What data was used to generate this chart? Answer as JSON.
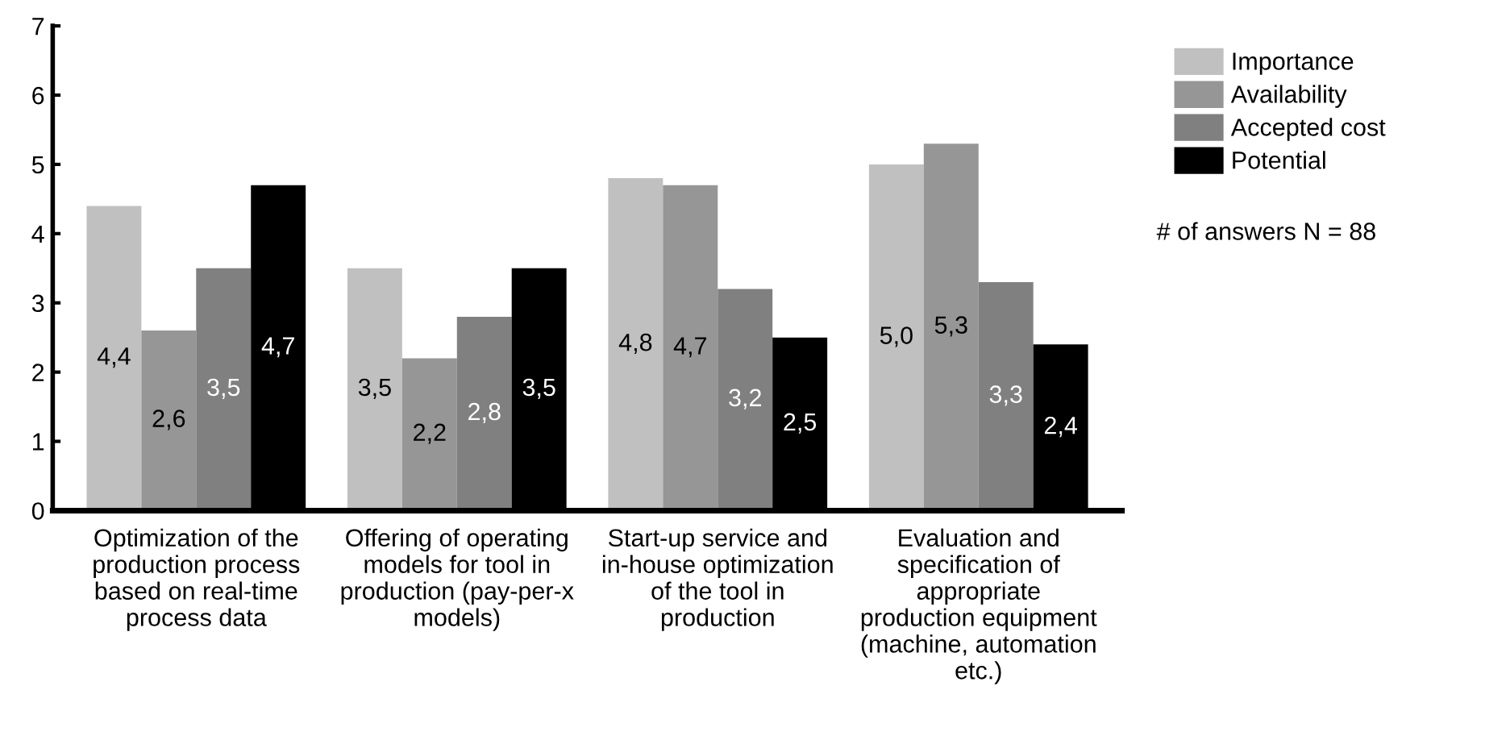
{
  "chart_data": {
    "type": "bar",
    "categories": [
      "Optimization of the\nproduction process\nbased on real-time\nprocess data",
      "Offering of operating\nmodels for tool in\nproduction (pay-per-x\nmodels)",
      "Start-up service and\nin-house optimization\nof the tool in\nproduction",
      "Evaluation and\nspecification of\nappropriate\nproduction equipment\n(machine, automation\netc.)"
    ],
    "series": [
      {
        "name": "Importance",
        "color": "#c0c0c0",
        "values": [
          4.4,
          3.5,
          4.8,
          5.0
        ],
        "value_labels": [
          "4,4",
          "3,5",
          "4,8",
          "5,0"
        ]
      },
      {
        "name": "Availability",
        "color": "#969696",
        "values": [
          2.6,
          2.2,
          4.7,
          5.3
        ],
        "value_labels": [
          "2,6",
          "2,2",
          "4,7",
          "5,3"
        ]
      },
      {
        "name": "Accepted cost",
        "color": "#808080",
        "values": [
          3.5,
          2.8,
          3.2,
          3.3
        ],
        "value_labels": [
          "3,5",
          "2,8",
          "3,2",
          "3,3"
        ]
      },
      {
        "name": "Potential",
        "color": "#000000",
        "values": [
          4.7,
          3.5,
          2.5,
          2.4
        ],
        "value_labels": [
          "4,7",
          "3,5",
          "2,5",
          "2,4"
        ]
      }
    ],
    "ylim": [
      0,
      7
    ],
    "yticks": [
      0,
      1,
      2,
      3,
      4,
      5,
      6,
      7
    ],
    "grid": false,
    "legend": "top right",
    "annotations": [
      "# of answers N = 88"
    ]
  }
}
